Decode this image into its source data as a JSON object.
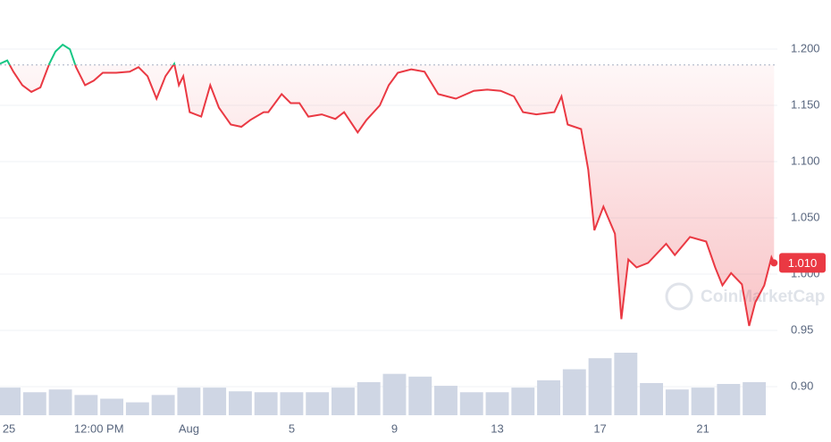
{
  "chart_data": {
    "type": "line",
    "watermark": "CoinMarketCap",
    "x": [
      -0.35,
      -0.07,
      0.17,
      0.52,
      0.87,
      1.22,
      1.57,
      1.81,
      2.09,
      2.37,
      2.61,
      2.96,
      3.3,
      3.65,
      4.17,
      4.7,
      5.04,
      5.39,
      5.74,
      6.09,
      6.43,
      6.61,
      6.78,
      7.03,
      7.48,
      7.83,
      8.17,
      8.63,
      9.04,
      9.39,
      9.91,
      10.09,
      10.61,
      10.96,
      11.3,
      11.65,
      12.17,
      12.7,
      13.04,
      13.57,
      13.91,
      14.43,
      14.78,
      15.13,
      15.65,
      16.17,
      16.7,
      17.39,
      18.09,
      18.61,
      19.13,
      19.65,
      20.0,
      20.52,
      21.22,
      21.5,
      21.74,
      22.26,
      22.54,
      22.78,
      23.13,
      23.58,
      23.83,
      24.1,
      24.42,
      24.87,
      25.57,
      25.91,
      26.5,
      27.13,
      27.48,
      27.76,
      28.1,
      28.52,
      28.8,
      29.04,
      29.39,
      29.67,
      29.77
    ],
    "values": [
      1.187,
      1.19,
      1.18,
      1.168,
      1.162,
      1.166,
      1.187,
      1.198,
      1.204,
      1.2,
      1.184,
      1.168,
      1.172,
      1.179,
      1.179,
      1.18,
      1.184,
      1.176,
      1.156,
      1.176,
      1.187,
      1.168,
      1.176,
      1.144,
      1.14,
      1.168,
      1.148,
      1.133,
      1.131,
      1.137,
      1.144,
      1.144,
      1.16,
      1.152,
      1.152,
      1.14,
      1.142,
      1.138,
      1.144,
      1.126,
      1.137,
      1.15,
      1.168,
      1.179,
      1.182,
      1.18,
      1.16,
      1.156,
      1.163,
      1.164,
      1.163,
      1.158,
      1.144,
      1.142,
      1.144,
      1.158,
      1.133,
      1.129,
      1.093,
      1.039,
      1.06,
      1.036,
      0.96,
      1.013,
      1.006,
      1.01,
      1.027,
      1.017,
      1.033,
      1.029,
      1.006,
      0.99,
      1.001,
      0.991,
      0.954,
      0.975,
      0.99,
      1.015,
      1.01
    ],
    "value_labels": [
      null,
      null,
      null,
      null,
      null,
      null,
      null,
      null,
      null,
      null,
      null,
      null,
      null,
      null,
      null,
      null,
      null,
      null,
      null,
      null,
      null,
      null,
      null,
      null,
      null,
      null,
      null,
      null,
      null,
      null,
      null,
      null,
      null,
      null,
      null,
      null,
      null,
      null,
      null,
      null,
      null,
      null,
      null,
      null,
      null,
      null,
      null,
      null,
      null,
      null,
      null,
      null,
      null,
      null,
      null,
      null,
      null,
      null,
      null,
      null,
      null,
      null,
      null,
      null,
      null,
      null,
      null,
      null,
      null,
      null,
      null,
      null,
      null,
      null,
      null,
      null,
      null,
      null,
      "1.010"
    ],
    "baseline": 1.186,
    "up_color": "#16c784",
    "down_color": "#ea3943",
    "volume": {
      "color": "#cfd6e4",
      "x": [
        0,
        1,
        2,
        3,
        4,
        5,
        6,
        7,
        8,
        9,
        10,
        11,
        12,
        13,
        14,
        15,
        16,
        17,
        18,
        19,
        20,
        21,
        22,
        23,
        24,
        25,
        26,
        27,
        28,
        29
      ],
      "values": [
        30,
        25,
        28,
        22,
        18,
        14,
        22,
        30,
        30,
        26,
        25,
        25,
        25,
        30,
        36,
        45,
        42,
        32,
        25,
        25,
        30,
        38,
        50,
        62,
        68,
        35,
        28,
        30,
        34,
        36
      ]
    },
    "xlim": [
      -0.35,
      29.9
    ],
    "ylim": [
      0.8746,
      1.2437
    ],
    "xticks": [
      {
        "value": 0,
        "label": "25"
      },
      {
        "value": 3.5,
        "label": "12:00 PM"
      },
      {
        "value": 7,
        "label": "Aug"
      },
      {
        "value": 11,
        "label": "5"
      },
      {
        "value": 15,
        "label": "9"
      },
      {
        "value": 19,
        "label": "13"
      },
      {
        "value": 23,
        "label": "17"
      },
      {
        "value": 27,
        "label": "21"
      }
    ],
    "yticks": [
      {
        "value": 0.9,
        "label": "0.90"
      },
      0.95,
      {
        "value": 1,
        "label": "1.000"
      },
      {
        "value": 1.05,
        "label": "1.050"
      },
      {
        "value": 1.1,
        "label": "1.100"
      },
      {
        "value": 1.15,
        "label": "1.150"
      },
      {
        "value": 1.2,
        "label": "1.200"
      }
    ],
    "grid": true
  }
}
